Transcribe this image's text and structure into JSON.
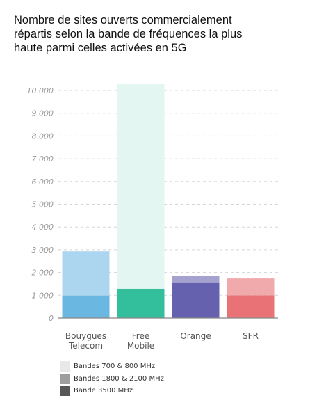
{
  "title_lines": [
    "Nombre de sites ouverts commercialement",
    "répartis selon la bande de fréquences la plus",
    "haute parmi celles activées en 5G"
  ],
  "chart_data": {
    "type": "bar",
    "stacked": true,
    "title": "Nombre de sites ouverts commercialement répartis selon la bande de fréquences la plus haute parmi celles activées en 5G",
    "categories": [
      [
        "Bouygues",
        "Telecom"
      ],
      [
        "Free",
        "Mobile"
      ],
      [
        "Orange"
      ],
      [
        "SFR"
      ]
    ],
    "series": [
      {
        "name": "Bande 3500 MHz",
        "values": [
          990,
          1290,
          1570,
          1000
        ]
      },
      {
        "name": "Bandes 1800 & 2100 MHz",
        "values": [
          1940,
          0,
          290,
          740
        ]
      },
      {
        "name": "Bandes 700 & 800 MHz",
        "values": [
          0,
          9000,
          0,
          0
        ]
      }
    ],
    "yticks": [
      "0",
      "1 000",
      "2 000",
      "3 000",
      "4 000",
      "5 000",
      "6 000",
      "7 000",
      "8 000",
      "9 000",
      "10 000"
    ],
    "ylim": [
      0,
      10000
    ],
    "grid": true,
    "legend_position": "bottom-left",
    "colors": {
      "bouygues": [
        "#6ab7e1",
        "#acd5ef",
        "#e1f1fa"
      ],
      "free": [
        "#33bf9c",
        "#a3e2d1",
        "#e3f6f1"
      ],
      "orange": [
        "#6561ae",
        "#a5a2d0",
        "#e2e1f0"
      ],
      "sfr": [
        "#e87275",
        "#f0aaac",
        "#f9e1e2"
      ]
    }
  },
  "legend": [
    {
      "label": "Bandes 700 & 800 MHz",
      "color": "#e8e8e8"
    },
    {
      "label": "Bandes 1800 & 2100 MHz",
      "color": "#9e9e9e"
    },
    {
      "label": "Bande 3500 MHz",
      "color": "#575757"
    }
  ]
}
